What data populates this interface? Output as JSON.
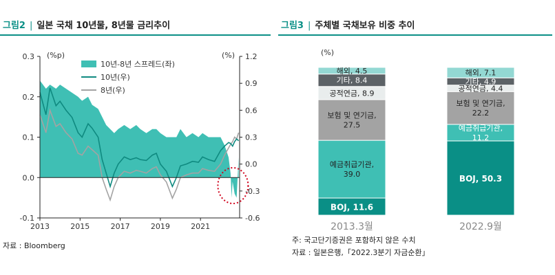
{
  "left": {
    "fig_num": "그림2",
    "separator": "|",
    "title": "일본 국채 10년물, 8년물 금리추이",
    "source": "자료 : Bloomberg"
  },
  "right": {
    "fig_num": "그림3",
    "separator": "|",
    "title": "주체별 국채보유 비중 추이",
    "note": "주: 국고단기증권은 포함하지 않은 수치",
    "source": "자료 : 일본은행,「2022.3분기 자금순환」"
  },
  "colors": {
    "teal": "#0a8f86",
    "spread": "#3fbfb4",
    "line10": "#0f8a80",
    "line8": "#a3a3a3",
    "dotted": "#d0021b"
  },
  "chart_data": [
    {
      "type": "area",
      "title": "일본 국채 10년물, 8년물 금리추이",
      "left_axis_unit": "(%p)",
      "right_axis_unit": "(%)",
      "left_ylim": [
        -0.1,
        0.3
      ],
      "right_ylim": [
        -0.6,
        1.2
      ],
      "left_ticks": [
        -0.1,
        0.0,
        0.1,
        0.2,
        0.3
      ],
      "left_tick_labels": [
        "-0.1",
        "0.0",
        "0.1",
        "0.2",
        "0.3"
      ],
      "right_ticks": [
        -0.6,
        -0.3,
        0.0,
        0.3,
        0.6,
        0.9,
        1.2
      ],
      "right_tick_labels": [
        "-0.6",
        "-0.3",
        "0.0",
        "0.3",
        "0.6",
        "0.9",
        "1.2"
      ],
      "xlim": [
        2013.0,
        2022.95
      ],
      "x_ticks": [
        2013,
        2015,
        2017,
        2019,
        2021
      ],
      "x_tick_labels": [
        "2013",
        "2015",
        "2017",
        "2019",
        "2021"
      ],
      "legend": [
        "10년-8년 스프레드(좌)",
        "10년(우)",
        "8년(우)"
      ],
      "series": [
        {
          "name": "10년(우)",
          "axis": "right",
          "x": [
            2013.0,
            2013.3,
            2013.5,
            2013.8,
            2014.0,
            2014.3,
            2014.6,
            2014.9,
            2015.1,
            2015.4,
            2015.6,
            2015.9,
            2016.1,
            2016.3,
            2016.5,
            2016.7,
            2016.9,
            2017.2,
            2017.5,
            2017.8,
            2018.0,
            2018.3,
            2018.6,
            2018.8,
            2019.0,
            2019.3,
            2019.6,
            2019.8,
            2020.0,
            2020.3,
            2020.6,
            2020.9,
            2021.1,
            2021.4,
            2021.7,
            2022.0,
            2022.2,
            2022.4,
            2022.5,
            2022.6,
            2022.7,
            2022.8,
            2022.9
          ],
          "values": [
            0.8,
            0.55,
            0.85,
            0.65,
            0.7,
            0.6,
            0.52,
            0.35,
            0.3,
            0.45,
            0.4,
            0.3,
            0.05,
            -0.1,
            -0.25,
            -0.1,
            0.0,
            0.08,
            0.05,
            0.07,
            0.05,
            0.04,
            0.1,
            0.12,
            0.0,
            -0.08,
            -0.25,
            -0.15,
            -0.02,
            0.0,
            0.03,
            0.02,
            0.08,
            0.05,
            0.03,
            0.15,
            0.2,
            0.24,
            0.23,
            0.2,
            0.25,
            0.28,
            0.26
          ]
        },
        {
          "name": "8년(우)",
          "axis": "right",
          "x": [
            2013.0,
            2013.3,
            2013.5,
            2013.8,
            2014.0,
            2014.3,
            2014.6,
            2014.9,
            2015.1,
            2015.4,
            2015.6,
            2015.9,
            2016.1,
            2016.3,
            2016.5,
            2016.7,
            2016.9,
            2017.2,
            2017.5,
            2017.8,
            2018.0,
            2018.3,
            2018.6,
            2018.8,
            2019.0,
            2019.3,
            2019.6,
            2019.8,
            2020.0,
            2020.3,
            2020.6,
            2020.9,
            2021.1,
            2021.4,
            2021.7,
            2022.0,
            2022.2,
            2022.4,
            2022.5,
            2022.6,
            2022.7,
            2022.8,
            2022.9
          ],
          "values": [
            0.55,
            0.35,
            0.6,
            0.42,
            0.45,
            0.35,
            0.28,
            0.12,
            0.1,
            0.2,
            0.16,
            0.1,
            -0.15,
            -0.28,
            -0.4,
            -0.25,
            -0.15,
            -0.08,
            -0.1,
            -0.07,
            -0.08,
            -0.1,
            -0.05,
            -0.03,
            -0.12,
            -0.2,
            -0.38,
            -0.28,
            -0.15,
            -0.12,
            -0.1,
            -0.1,
            -0.05,
            -0.07,
            -0.08,
            0.0,
            0.1,
            0.18,
            0.22,
            0.25,
            0.3,
            0.28,
            0.35
          ]
        },
        {
          "name": "10년-8년 스프레드(좌)",
          "axis": "left",
          "x": [
            2013.0,
            2013.3,
            2013.5,
            2013.8,
            2014.0,
            2014.3,
            2014.6,
            2014.9,
            2015.1,
            2015.4,
            2015.6,
            2015.9,
            2016.1,
            2016.3,
            2016.5,
            2016.7,
            2016.9,
            2017.2,
            2017.5,
            2017.8,
            2018.0,
            2018.3,
            2018.6,
            2018.8,
            2019.0,
            2019.3,
            2019.6,
            2019.8,
            2020.0,
            2020.3,
            2020.6,
            2020.9,
            2021.1,
            2021.4,
            2021.7,
            2022.0,
            2022.2,
            2022.4,
            2022.5,
            2022.55,
            2022.6,
            2022.7,
            2022.8,
            2022.9
          ],
          "values": [
            0.24,
            0.22,
            0.23,
            0.22,
            0.23,
            0.22,
            0.21,
            0.2,
            0.19,
            0.2,
            0.18,
            0.17,
            0.15,
            0.13,
            0.12,
            0.11,
            0.12,
            0.13,
            0.12,
            0.13,
            0.12,
            0.11,
            0.12,
            0.12,
            0.11,
            0.1,
            0.1,
            0.1,
            0.12,
            0.1,
            0.11,
            0.1,
            0.11,
            0.1,
            0.1,
            0.1,
            0.08,
            0.05,
            0.01,
            -0.05,
            -0.01,
            -0.04,
            -0.05,
            0.05
          ]
        }
      ],
      "annotation": "dotted circle highlighting negative spread in 2022"
    },
    {
      "type": "bar",
      "stacked": true,
      "normalized_percent": true,
      "title": "주체별 국채보유 비중 추이",
      "y_unit": "(%)",
      "categories": [
        "2013.3월",
        "2022.9월"
      ],
      "series": [
        {
          "name": "BOJ",
          "values": [
            11.6,
            50.3
          ]
        },
        {
          "name": "예금취급기관",
          "values": [
            39.0,
            11.2
          ]
        },
        {
          "name": "보험 및 연기금",
          "values": [
            27.5,
            22.2
          ]
        },
        {
          "name": "공적연금",
          "values": [
            8.9,
            4.4
          ]
        },
        {
          "name": "기타",
          "values": [
            8.4,
            4.9
          ]
        },
        {
          "name": "해외",
          "values": [
            4.5,
            7.1
          ]
        }
      ],
      "segment_labels": [
        [
          "BOJ, 11.6",
          "예금취급기관,",
          "39.0",
          "보험 및 연기금,",
          "27.5",
          "공적연금, 8.9",
          "기타, 8.4",
          "해외, 4.5"
        ],
        [
          "BOJ, 50.3",
          "예금취급기관,",
          "11.2",
          "보험 및 연기금,",
          "22.2",
          "공적연금, 4.4",
          "기타, 4.9",
          "해외, 7.1"
        ]
      ],
      "segment_colors": [
        "#0a8f86",
        "#3fbfb4",
        "#a3a3a3",
        "#e9eded",
        "#5c6266",
        "#93d8d3"
      ]
    }
  ]
}
